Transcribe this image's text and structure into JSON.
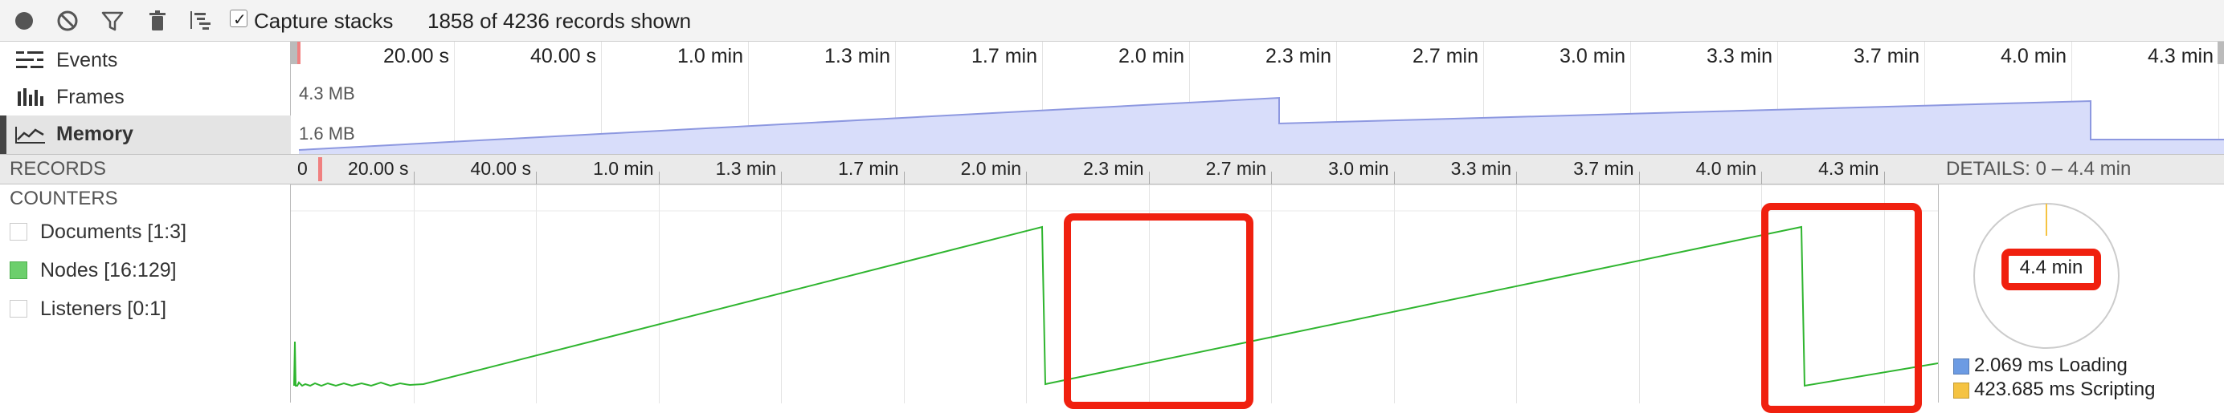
{
  "toolbar": {
    "capture_label": "Capture stacks",
    "records_status": "1858 of 4236 records shown",
    "icons": [
      "record-icon",
      "clear-icon",
      "filter-icon",
      "garbage-collect-icon",
      "flame-chart-icon"
    ]
  },
  "overview": {
    "items": [
      {
        "label": "Events",
        "icon": "events-icon"
      },
      {
        "label": "Frames",
        "icon": "frames-icon"
      },
      {
        "label": "Memory",
        "icon": "memory-icon",
        "selected": true
      }
    ],
    "time_ticks": [
      "20.00 s",
      "40.00 s",
      "1.0 min",
      "1.3 min",
      "1.7 min",
      "2.0 min",
      "2.3 min",
      "2.7 min",
      "3.0 min",
      "3.3 min",
      "3.7 min",
      "4.0 min",
      "4.3 min"
    ],
    "memory_max_label": "4.3 MB",
    "memory_min_label": "1.6 MB"
  },
  "records": {
    "title": "RECORDS",
    "ruler_start": "0",
    "ruler_ticks": [
      "20.00 s",
      "40.00 s",
      "1.0 min",
      "1.3 min",
      "1.7 min",
      "2.0 min",
      "2.3 min",
      "2.7 min",
      "3.0 min",
      "3.3 min",
      "3.7 min",
      "4.0 min",
      "4.3 min"
    ]
  },
  "counters": {
    "title": "COUNTERS",
    "items": [
      {
        "label": "Documents [1:3]",
        "color": "#ffffff",
        "checked": false
      },
      {
        "label": "Nodes [16:129]",
        "color": "#6ccf6c",
        "checked": true
      },
      {
        "label": "Listeners [0:1]",
        "color": "#ffffff",
        "checked": false
      }
    ]
  },
  "details": {
    "title": "DETAILS: 0 – 4.4 min",
    "pie_label": "4.4 min",
    "legend": [
      {
        "text": "2.069 ms Loading",
        "color": "#6c9be3"
      },
      {
        "text": "423.685 ms Scripting",
        "color": "#f5c342"
      }
    ]
  },
  "colors": {
    "node_line": "#2fb52f",
    "memory_fill": "#d8ddfa",
    "memory_stroke": "#8d98e0",
    "annotation": "#f0200f"
  }
}
